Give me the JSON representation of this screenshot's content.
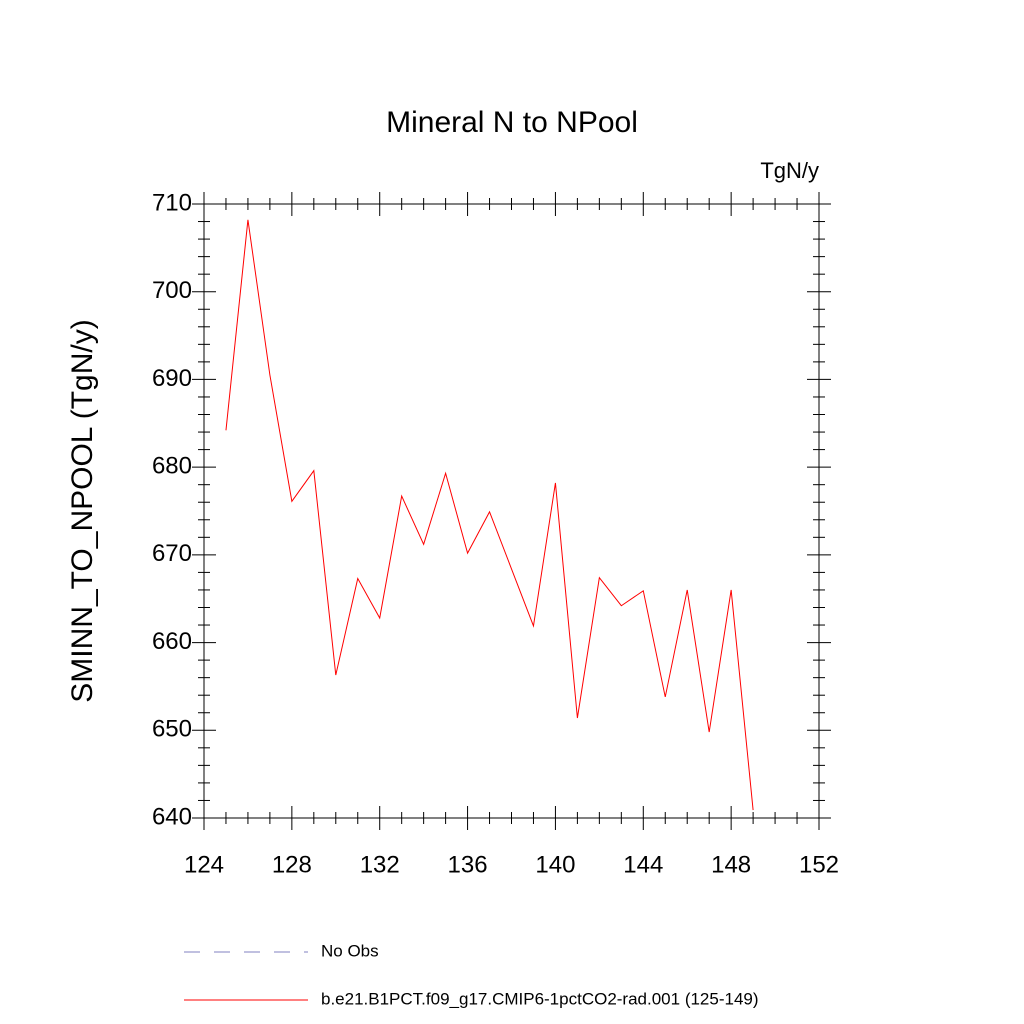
{
  "chart_data": {
    "type": "line",
    "title": "Mineral N to NPool",
    "units": "TgN/y",
    "ylabel": "SMINN_TO_NPOOL  (TgN/y)",
    "x": [
      125,
      126,
      127,
      128,
      129,
      130,
      131,
      132,
      133,
      134,
      135,
      136,
      137,
      138,
      139,
      140,
      141,
      142,
      143,
      144,
      145,
      146,
      147,
      148,
      149
    ],
    "series": [
      {
        "name": "b.e21.B1PCT.f09_g17.CMIP6-1pctCO2-rad.001 (125-149)",
        "color": "#ff0000",
        "values": [
          684.2,
          708.2,
          690.5,
          676.1,
          679.6,
          656.3,
          667.3,
          662.8,
          676.7,
          671.2,
          679.3,
          670.2,
          674.9,
          668.4,
          661.9,
          678.2,
          651.4,
          667.4,
          664.2,
          665.9,
          653.8,
          666.0,
          649.8,
          666.0,
          640.9
        ]
      }
    ],
    "extra_legend": [
      {
        "name": "No Obs",
        "color": "#8080c0",
        "line_style": "dashed"
      }
    ],
    "xlim": [
      124,
      152
    ],
    "xticks": [
      124,
      128,
      132,
      136,
      140,
      144,
      148,
      152
    ],
    "ylim": [
      640,
      710
    ],
    "yticks": [
      640,
      650,
      660,
      670,
      680,
      690,
      700,
      710
    ]
  }
}
